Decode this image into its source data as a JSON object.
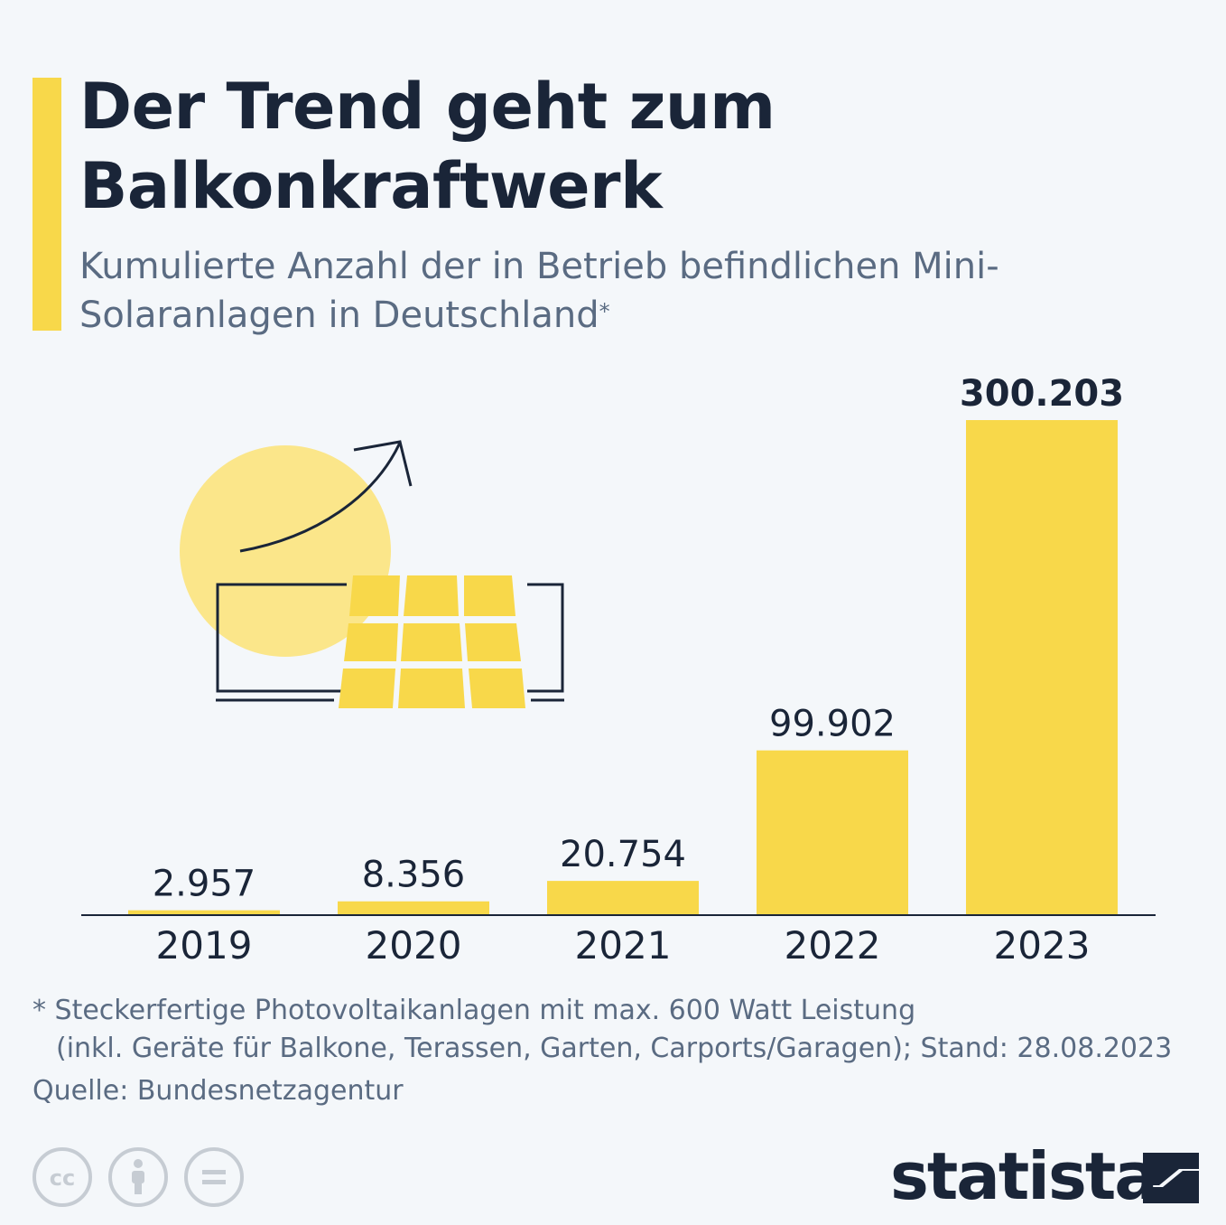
{
  "title": "Der Trend geht zum Balkonkraftwerk",
  "subtitle": "Kumulierte Anzahl der in Betrieb befindlichen Mini-Solaranlagen in Deutschland",
  "subtitle_mark": "*",
  "footnote_line1": "* Steckerfertige Photovoltaikanlagen mit max. 600 Watt Leistung",
  "footnote_line2": "(inkl. Geräte für Balkone, Terassen, Garten, Carports/Garagen); Stand: 28.08.2023",
  "source": "Quelle: Bundesnetzagentur",
  "logo_text": "statista",
  "colors": {
    "bar": "#f8d84a",
    "title": "#1a2538",
    "text": "#5a6b82",
    "axis": "#1a2538",
    "sun": "#fbe68a"
  },
  "icons": [
    "solar-panel-illustration",
    "cc-icon",
    "attribution-icon",
    "no-derivatives-icon",
    "statista-logo-icon"
  ],
  "chart_data": {
    "type": "bar",
    "categories": [
      "2019",
      "2020",
      "2021",
      "2022",
      "2023"
    ],
    "values": [
      2957,
      8356,
      20754,
      99902,
      300203
    ],
    "value_labels": [
      "2.957",
      "8.356",
      "20.754",
      "99.902",
      "300.203"
    ],
    "title": "Der Trend geht zum Balkonkraftwerk",
    "xlabel": "",
    "ylabel": "",
    "ylim": [
      0,
      300203
    ],
    "grid": false,
    "legend": "none"
  }
}
